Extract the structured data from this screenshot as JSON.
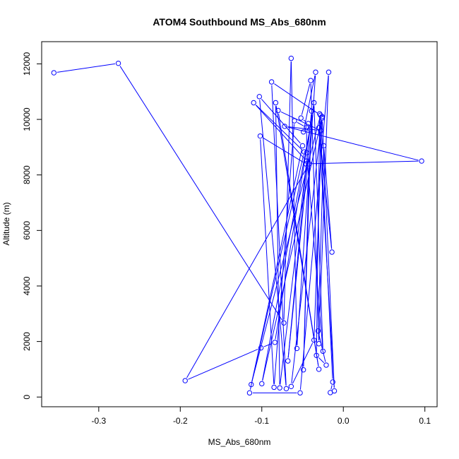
{
  "chart_data": {
    "type": "scatter",
    "title": "ATOM4 Southbound MS_Abs_680nm",
    "xlabel": "MS_Abs_680nm",
    "ylabel": "Altitude (m)",
    "xlim": [
      -0.37,
      0.115
    ],
    "ylim": [
      -350,
      12800
    ],
    "x_ticks": [
      -0.3,
      -0.2,
      -0.1,
      0.0,
      0.1
    ],
    "x_tick_labels": [
      "-0.3",
      "-0.2",
      "-0.1",
      "0.0",
      "0.1"
    ],
    "y_ticks": [
      0,
      2000,
      4000,
      6000,
      8000,
      10000,
      12000
    ],
    "y_tick_labels": [
      "0",
      "2000",
      "4000",
      "6000",
      "8000",
      "10000",
      "12000"
    ],
    "grid": false,
    "series_color": "#0000ff",
    "marker": "open-circle",
    "connected": true,
    "points": [
      {
        "x": -0.355,
        "y": 11680
      },
      {
        "x": -0.276,
        "y": 12020
      },
      {
        "x": -0.073,
        "y": 2670
      },
      {
        "x": -0.064,
        "y": 12200
      },
      {
        "x": -0.057,
        "y": 1750
      },
      {
        "x": -0.034,
        "y": 11700
      },
      {
        "x": -0.049,
        "y": 9550
      },
      {
        "x": -0.043,
        "y": 9850
      },
      {
        "x": -0.052,
        "y": 10050
      },
      {
        "x": -0.04,
        "y": 11400
      },
      {
        "x": -0.03,
        "y": 1920
      },
      {
        "x": -0.018,
        "y": 11700
      },
      {
        "x": -0.053,
        "y": 150
      },
      {
        "x": -0.115,
        "y": 150
      },
      {
        "x": -0.05,
        "y": 9050
      },
      {
        "x": -0.103,
        "y": 10820
      },
      {
        "x": -0.07,
        "y": 300
      },
      {
        "x": -0.088,
        "y": 11350
      },
      {
        "x": -0.028,
        "y": 10150
      },
      {
        "x": -0.113,
        "y": 450
      },
      {
        "x": -0.048,
        "y": 8830
      },
      {
        "x": -0.11,
        "y": 10600
      },
      {
        "x": -0.045,
        "y": 8500
      },
      {
        "x": -0.078,
        "y": 330
      },
      {
        "x": -0.083,
        "y": 10600
      },
      {
        "x": -0.03,
        "y": 1000
      },
      {
        "x": -0.08,
        "y": 10320
      },
      {
        "x": -0.028,
        "y": 9600
      },
      {
        "x": -0.072,
        "y": 9750
      },
      {
        "x": 0.096,
        "y": 8500
      },
      {
        "x": -0.046,
        "y": 8400
      },
      {
        "x": -0.102,
        "y": 9400
      },
      {
        "x": -0.085,
        "y": 350
      },
      {
        "x": -0.06,
        "y": 9950
      },
      {
        "x": -0.045,
        "y": 9700
      },
      {
        "x": -0.045,
        "y": 8800
      },
      {
        "x": -0.025,
        "y": 1650
      },
      {
        "x": -0.036,
        "y": 10600
      },
      {
        "x": -0.068,
        "y": 1300
      },
      {
        "x": -0.039,
        "y": 10300
      },
      {
        "x": -0.049,
        "y": 980
      },
      {
        "x": -0.042,
        "y": 8400
      },
      {
        "x": -0.194,
        "y": 590
      },
      {
        "x": -0.101,
        "y": 1770
      },
      {
        "x": -0.084,
        "y": 1970
      },
      {
        "x": -0.041,
        "y": 9650
      },
      {
        "x": -0.1,
        "y": 480
      },
      {
        "x": -0.026,
        "y": 10100
      },
      {
        "x": -0.064,
        "y": 380
      },
      {
        "x": -0.036,
        "y": 2050
      },
      {
        "x": -0.026,
        "y": 10050
      },
      {
        "x": -0.011,
        "y": 220
      },
      {
        "x": -0.03,
        "y": 9700
      },
      {
        "x": -0.014,
        "y": 5220
      },
      {
        "x": -0.024,
        "y": 9050
      },
      {
        "x": -0.031,
        "y": 2380
      },
      {
        "x": -0.021,
        "y": 1150
      },
      {
        "x": -0.033,
        "y": 1500
      },
      {
        "x": -0.029,
        "y": 10200
      },
      {
        "x": -0.013,
        "y": 540
      },
      {
        "x": -0.016,
        "y": 160
      }
    ]
  }
}
